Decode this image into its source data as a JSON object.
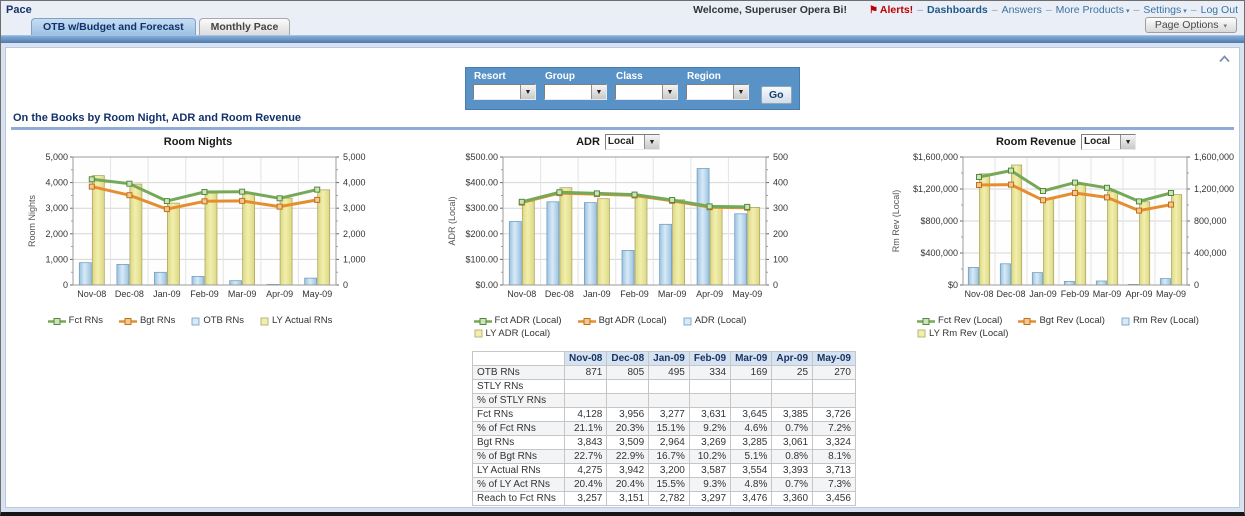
{
  "page": {
    "title": "Pace"
  },
  "topnav": {
    "welcome": "Welcome, Superuser Opera Bi!",
    "alerts": {
      "label": "Alerts!",
      "color": "#C00000"
    },
    "separator": "–",
    "links": [
      {
        "label": "Dashboards",
        "bold": true,
        "caret": false
      },
      {
        "label": "Answers",
        "bold": false,
        "caret": false
      },
      {
        "label": "More Products",
        "bold": false,
        "caret": true
      },
      {
        "label": "Settings",
        "bold": false,
        "caret": true
      },
      {
        "label": "Log Out",
        "bold": false,
        "caret": false
      }
    ]
  },
  "tabs": [
    {
      "label": "OTB w/Budget and Forecast",
      "active": true
    },
    {
      "label": "Monthly Pace",
      "active": false
    }
  ],
  "page_options": {
    "label": "Page Options"
  },
  "filters": {
    "labels": [
      "Resort",
      "Group",
      "Class",
      "Region"
    ],
    "go_label": "Go"
  },
  "section": {
    "title": "On the Books by Room Night, ADR and Room Revenue"
  },
  "palette": {
    "blue": {
      "center": "#D8EAF7",
      "edge": "#9AC2E0",
      "stroke": "#6E9CC0"
    },
    "yellow": {
      "center": "#F2EFAE",
      "edge": "#DDD884",
      "stroke": "#A9A45E"
    },
    "green": {
      "line": "#76A957",
      "marker_fill": "#CDE4B8",
      "marker_stroke": "#55883F"
    },
    "orange": {
      "line": "#E58E2F",
      "marker_fill": "#F4C690",
      "marker_stroke": "#BF701C"
    },
    "accent_blue_bar": "#5992C7",
    "section_rule": "#8FACD6"
  },
  "chart_data": [
    {
      "type": "bar",
      "subtype": "combo bar+line, dual y-axis",
      "title": "Room Nights",
      "currency_selector": null,
      "y_axis_label": "Room Nights",
      "y_max": 5000,
      "left_ticks": [
        "0",
        "1,000",
        "2,000",
        "3,000",
        "4,000",
        "5,000"
      ],
      "right_ticks": [
        "0",
        "1,000",
        "2,000",
        "3,000",
        "4,000",
        "5,000"
      ],
      "categories": [
        "Nov-08",
        "Dec-08",
        "Jan-09",
        "Feb-09",
        "Mar-09",
        "Apr-09",
        "May-09"
      ],
      "series": [
        {
          "name": "Fct RNs",
          "type": "line",
          "color": "green",
          "values": [
            4128,
            3956,
            3277,
            3631,
            3645,
            3385,
            3726
          ]
        },
        {
          "name": "Bgt RNs",
          "type": "line",
          "color": "orange",
          "values": [
            3843,
            3509,
            2964,
            3269,
            3285,
            3061,
            3324
          ]
        },
        {
          "name": "OTB RNs",
          "type": "bar",
          "color": "blue",
          "values": [
            871,
            805,
            495,
            334,
            169,
            25,
            270
          ]
        },
        {
          "name": "LY Actual RNs",
          "type": "bar",
          "color": "yellow",
          "values": [
            4275,
            3942,
            3200,
            3587,
            3554,
            3393,
            3713
          ]
        }
      ],
      "legend_rows": [
        [
          0,
          1,
          2,
          3
        ]
      ]
    },
    {
      "type": "bar",
      "subtype": "combo bar+line, dual y-axis",
      "title": "ADR",
      "currency_selector": {
        "value": "Local"
      },
      "y_axis_label": "ADR (Local)",
      "y_max": 500,
      "left_ticks": [
        "$0.00",
        "$100.00",
        "$200.00",
        "$300.00",
        "$400.00",
        "$500.00"
      ],
      "right_ticks": [
        "0",
        "100",
        "200",
        "300",
        "400",
        "500"
      ],
      "categories": [
        "Nov-08",
        "Dec-08",
        "Jan-09",
        "Feb-09",
        "Mar-09",
        "Apr-09",
        "May-09"
      ],
      "series": [
        {
          "name": "Fct ADR (Local)",
          "type": "line",
          "color": "green",
          "values": [
            325,
            362,
            358,
            353,
            332,
            307,
            305
          ]
        },
        {
          "name": "Bgt ADR (Local)",
          "type": "line",
          "color": "orange",
          "values": [
            322,
            359,
            355,
            350,
            329,
            304,
            302
          ]
        },
        {
          "name": "ADR (Local)",
          "type": "bar",
          "color": "blue",
          "values": [
            248,
            325,
            322,
            135,
            237,
            455,
            278
          ]
        },
        {
          "name": "LY ADR (Local)",
          "type": "bar",
          "color": "yellow",
          "values": [
            327,
            380,
            337,
            350,
            333,
            305,
            303
          ]
        }
      ],
      "legend_rows": [
        [
          0,
          1,
          2
        ],
        [
          3
        ]
      ]
    },
    {
      "type": "bar",
      "subtype": "combo bar+line, dual y-axis",
      "title": "Room Revenue",
      "currency_selector": {
        "value": "Local"
      },
      "y_axis_label": "Rm Rev (Local)",
      "y_max": 1600000,
      "left_ticks": [
        "$0",
        "$400,000",
        "$800,000",
        "$1,200,000",
        "$1,600,000"
      ],
      "right_ticks": [
        "0",
        "400,000",
        "800,000",
        "1,200,000",
        "1,600,000"
      ],
      "categories": [
        "Nov-08",
        "Dec-08",
        "Jan-09",
        "Feb-09",
        "Mar-09",
        "Apr-09",
        "May-09"
      ],
      "series": [
        {
          "name": "Fct Rev (Local)",
          "type": "line",
          "color": "green",
          "values": [
            1350000,
            1430000,
            1175000,
            1280000,
            1215000,
            1045000,
            1150000
          ]
        },
        {
          "name": "Bgt Rev (Local)",
          "type": "line",
          "color": "orange",
          "values": [
            1250000,
            1255000,
            1060000,
            1150000,
            1095000,
            930000,
            1005000
          ]
        },
        {
          "name": "Rm Rev (Local)",
          "type": "bar",
          "color": "blue",
          "values": [
            220000,
            265000,
            155000,
            45000,
            50000,
            8000,
            80000
          ]
        },
        {
          "name": "LY Rm Rev (Local)",
          "type": "bar",
          "color": "yellow",
          "values": [
            1390000,
            1500000,
            1080000,
            1255000,
            1165000,
            1040000,
            1130000
          ]
        }
      ],
      "legend_rows": [
        [
          0,
          1,
          2
        ],
        [
          3
        ]
      ]
    }
  ],
  "table": {
    "columns": [
      "Nov-08",
      "Dec-08",
      "Jan-09",
      "Feb-09",
      "Mar-09",
      "Apr-09",
      "May-09"
    ],
    "rows": [
      {
        "label": "OTB RNs",
        "values": [
          "871",
          "805",
          "495",
          "334",
          "169",
          "25",
          "270"
        ]
      },
      {
        "label": "STLY RNs",
        "values": [
          "",
          "",
          "",
          "",
          "",
          "",
          ""
        ]
      },
      {
        "label": "% of STLY RNs",
        "values": [
          "",
          "",
          "",
          "",
          "",
          "",
          ""
        ]
      },
      {
        "label": "Fct RNs",
        "values": [
          "4,128",
          "3,956",
          "3,277",
          "3,631",
          "3,645",
          "3,385",
          "3,726"
        ]
      },
      {
        "label": "% of Fct RNs",
        "values": [
          "21.1%",
          "20.3%",
          "15.1%",
          "9.2%",
          "4.6%",
          "0.7%",
          "7.2%"
        ]
      },
      {
        "label": "Bgt RNs",
        "values": [
          "3,843",
          "3,509",
          "2,964",
          "3,269",
          "3,285",
          "3,061",
          "3,324"
        ]
      },
      {
        "label": "% of Bgt RNs",
        "values": [
          "22.7%",
          "22.9%",
          "16.7%",
          "10.2%",
          "5.1%",
          "0.8%",
          "8.1%"
        ]
      },
      {
        "label": "LY Actual RNs",
        "values": [
          "4,275",
          "3,942",
          "3,200",
          "3,587",
          "3,554",
          "3,393",
          "3,713"
        ]
      },
      {
        "label": "% of LY Act RNs",
        "values": [
          "20.4%",
          "20.4%",
          "15.5%",
          "9.3%",
          "4.8%",
          "0.7%",
          "7.3%"
        ]
      },
      {
        "label": "Reach to Fct RNs",
        "values": [
          "3,257",
          "3,151",
          "2,782",
          "3,297",
          "3,476",
          "3,360",
          "3,456"
        ]
      }
    ]
  }
}
